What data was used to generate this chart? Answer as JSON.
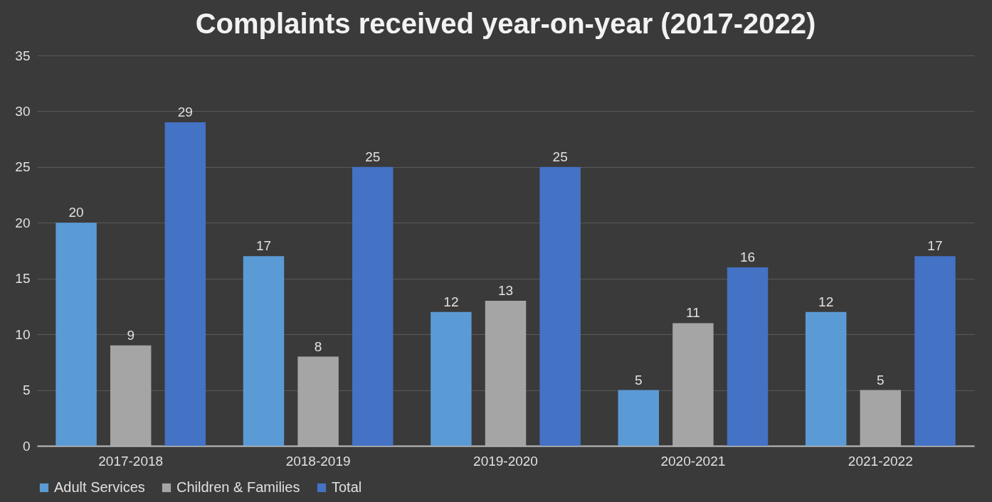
{
  "chart_data": {
    "type": "bar",
    "title": "Complaints received year-on-year (2017-2022)",
    "categories": [
      "2017-2018",
      "2018-2019",
      "2019-2020",
      "2020-2021",
      "2021-2022"
    ],
    "series": [
      {
        "name": "Adult Services",
        "color": "#5b9bd5",
        "values": [
          20,
          17,
          12,
          5,
          12
        ]
      },
      {
        "name": "Children & Families",
        "color": "#a5a5a5",
        "values": [
          9,
          8,
          13,
          11,
          5
        ]
      },
      {
        "name": "Total",
        "color": "#4472c4",
        "values": [
          29,
          25,
          25,
          16,
          17
        ]
      }
    ],
    "ylim": [
      0,
      35
    ],
    "yticks": [
      0,
      5,
      10,
      15,
      20,
      25,
      30,
      35
    ],
    "grid": "y",
    "legend": "bottom",
    "data_labels": true
  }
}
